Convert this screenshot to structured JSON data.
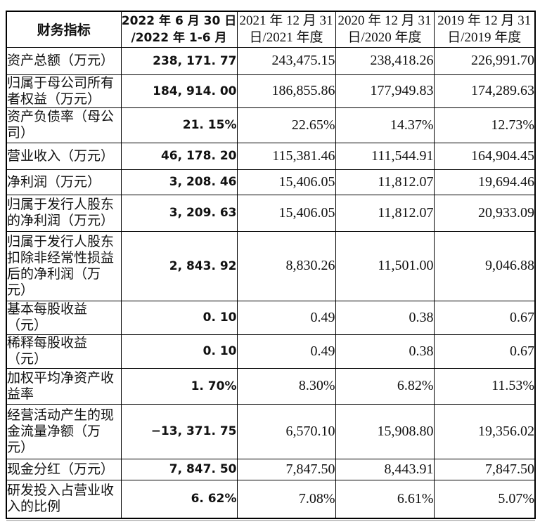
{
  "table": {
    "columns": [
      {
        "label": "财务指标"
      },
      {
        "label": "2022 年 6 月 30 日\n/2022 年 1-6 月"
      },
      {
        "label": "2021 年 12 月 31\n日/2021 年度"
      },
      {
        "label": "2020 年 12 月 31\n日/2020 年度"
      },
      {
        "label": "2019 年 12 月 31\n日/2019 年度"
      }
    ],
    "rows": [
      {
        "label": "资产总额（万元）",
        "values": [
          "238, 171. 77",
          "243,475.15",
          "238,418.26",
          "226,991.70"
        ]
      },
      {
        "label": "归属于母公司所有\n者权益（万元）",
        "values": [
          "184, 914. 00",
          "186,855.86",
          "177,949.83",
          "174,289.63"
        ]
      },
      {
        "label": "资产负债率（母公\n司）",
        "values": [
          "21. 15%",
          "22.65%",
          "14.37%",
          "12.73%"
        ]
      },
      {
        "label": "营业收入（万元）",
        "values": [
          "46, 178. 20",
          "115,381.46",
          "111,544.91",
          "164,904.45"
        ]
      },
      {
        "label": "净利润（万元）",
        "values": [
          "3, 208. 46",
          "15,406.05",
          "11,812.07",
          "19,694.46"
        ]
      },
      {
        "label": "归属于发行人股东\n的净利润（万元）",
        "values": [
          "3, 209. 63",
          "15,406.05",
          "11,812.07",
          "20,933.09"
        ]
      },
      {
        "label": "归属于发行人股东\n扣除非经常性损益\n后的净利润（万\n元）",
        "values": [
          "2, 843. 92",
          "8,830.26",
          "11,501.00",
          "9,046.88"
        ]
      },
      {
        "label": "基本每股收益\n（元）",
        "values": [
          "0. 10",
          "0.49",
          "0.38",
          "0.67"
        ]
      },
      {
        "label": "稀释每股收益\n（元）",
        "values": [
          "0. 10",
          "0.49",
          "0.38",
          "0.67"
        ]
      },
      {
        "label": "加权平均净资产收\n益率",
        "values": [
          "1. 70%",
          "8.30%",
          "6.82%",
          "11.53%"
        ]
      },
      {
        "label": "经营活动产生的现\n金流量净额（万\n元）",
        "values": [
          "−13, 371. 75",
          "6,570.10",
          "15,908.80",
          "19,356.02"
        ]
      },
      {
        "label": "现金分红（万元）",
        "values": [
          "7, 847. 50",
          "7,847.50",
          "8,443.91",
          "7,847.50"
        ]
      },
      {
        "label": "研发投入占营业收\n入的比例",
        "values": [
          "6. 62%",
          "7.08%",
          "6.61%",
          "5.07%"
        ]
      }
    ]
  }
}
